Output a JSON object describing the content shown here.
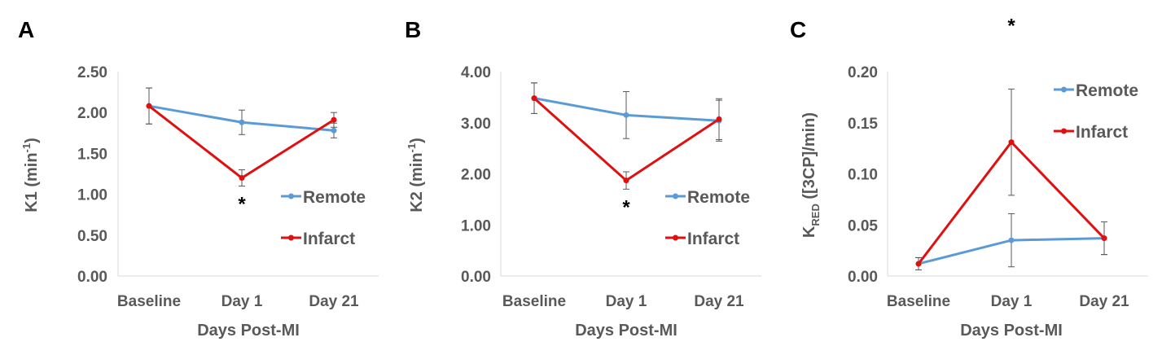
{
  "figure": {
    "panels": [
      "A",
      "B",
      "C"
    ]
  },
  "colors": {
    "remote": "#5b9bd5",
    "infarct": "#e01010",
    "error_bar": "#595959",
    "axis": "#d9d9d9",
    "text": "#595959"
  },
  "chart_data": [
    {
      "panel": "A",
      "type": "line",
      "categories": [
        "Baseline",
        "Day 1",
        "Day 21"
      ],
      "xlabel": "Days Post-MI",
      "ylabel_main": "K1 (min",
      "ylabel_sup": "-1",
      "ylabel_end": ")",
      "ylim": [
        0,
        2.5
      ],
      "yticks": [
        "0.00",
        "0.50",
        "1.00",
        "1.50",
        "2.00",
        "2.50"
      ],
      "tick_values": [
        0,
        0.5,
        1,
        1.5,
        2,
        2.5
      ],
      "grid": false,
      "legend_placement": "right",
      "series": [
        {
          "name": "Remote",
          "values": [
            2.08,
            1.88,
            1.78
          ],
          "errors": [
            0.22,
            0.15,
            0.09
          ]
        },
        {
          "name": "Infarct",
          "values": [
            2.08,
            1.2,
            1.91
          ],
          "errors": [
            0.22,
            0.1,
            0.09
          ]
        }
      ],
      "annotations": [
        {
          "text": "*",
          "category": "Day 1",
          "placement": "below"
        }
      ]
    },
    {
      "panel": "B",
      "type": "line",
      "categories": [
        "Baseline",
        "Day 1",
        "Day 21"
      ],
      "xlabel": "Days Post-MI",
      "ylabel_main": "K2 (min",
      "ylabel_sup": "-1",
      "ylabel_end": ")",
      "ylim": [
        0,
        4
      ],
      "yticks": [
        "0.00",
        "1.00",
        "2.00",
        "3.00",
        "4.00"
      ],
      "tick_values": [
        0,
        1,
        2,
        3,
        4
      ],
      "grid": false,
      "legend_placement": "right",
      "series": [
        {
          "name": "Remote",
          "values": [
            3.48,
            3.15,
            3.04
          ],
          "errors": [
            0.3,
            0.46,
            0.4
          ]
        },
        {
          "name": "Infarct",
          "values": [
            3.48,
            1.87,
            3.07
          ],
          "errors": [
            0.3,
            0.17,
            0.4
          ]
        }
      ],
      "annotations": [
        {
          "text": "*",
          "category": "Day 1",
          "placement": "below"
        }
      ]
    },
    {
      "panel": "C",
      "type": "line",
      "categories": [
        "Baseline",
        "Day 1",
        "Day 21"
      ],
      "xlabel": "Days Post-MI",
      "ylabel_main": "K",
      "ylabel_sub": "RED",
      "ylabel_end": " ([3CP]/min)",
      "ylim": [
        0,
        0.2
      ],
      "yticks": [
        "0.00",
        "0.05",
        "0.10",
        "0.15",
        "0.20"
      ],
      "tick_values": [
        0,
        0.05,
        0.1,
        0.15,
        0.2
      ],
      "grid": false,
      "legend_placement": "top-right",
      "series": [
        {
          "name": "Remote",
          "values": [
            0.012,
            0.035,
            0.037
          ],
          "errors": [
            0.006,
            0.026,
            0.016
          ]
        },
        {
          "name": "Infarct",
          "values": [
            0.012,
            0.131,
            0.037
          ],
          "errors": [
            0.006,
            0.052,
            0.016
          ]
        }
      ],
      "annotations": [
        {
          "text": "*",
          "category": "Day 1",
          "placement": "above"
        }
      ]
    }
  ]
}
